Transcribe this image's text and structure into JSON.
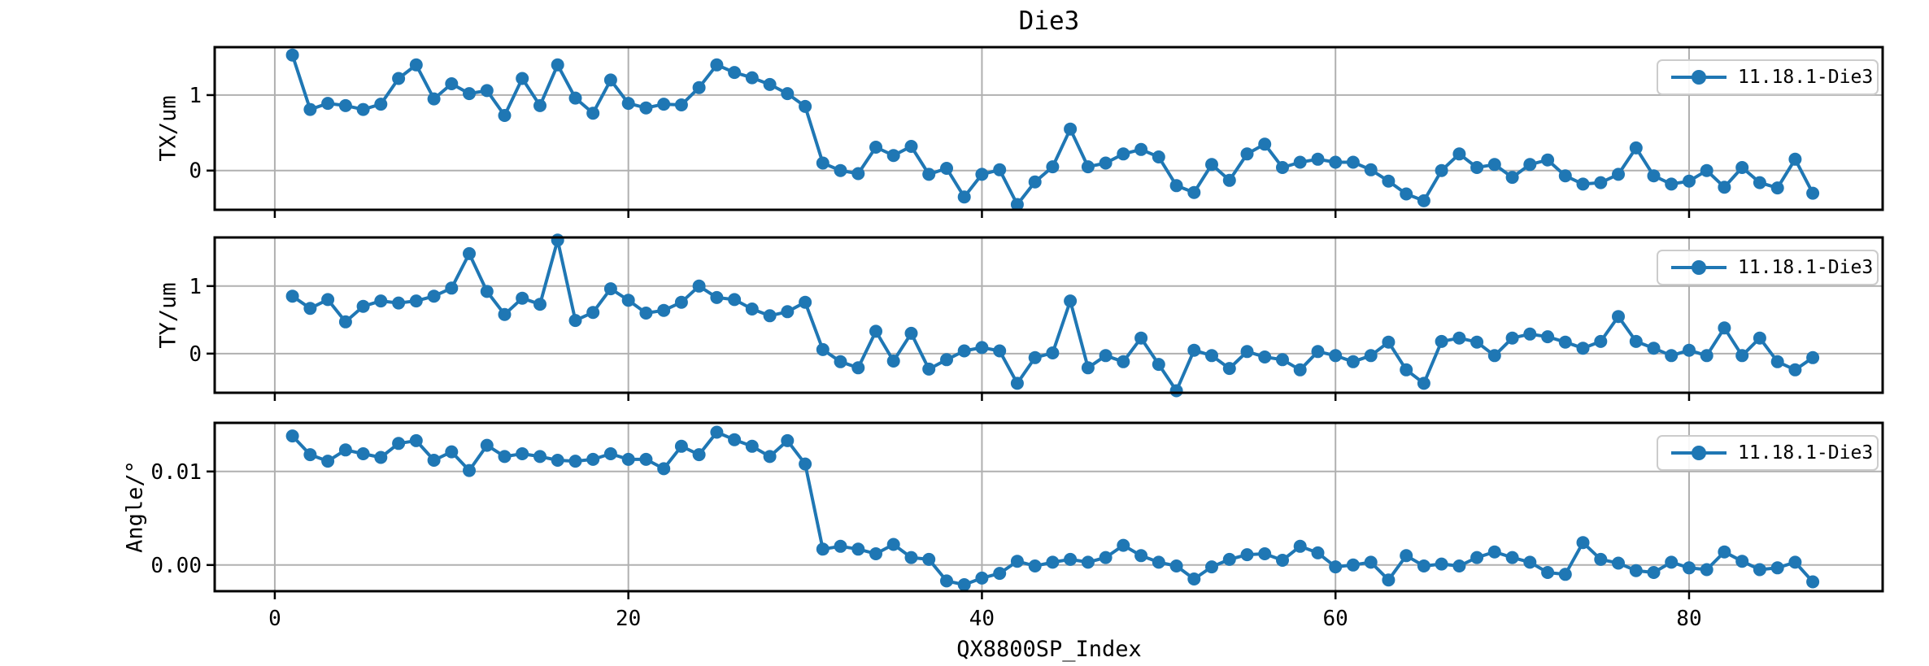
{
  "colors": {
    "series": "#1f77b4",
    "grid": "#b0b0b0",
    "spine": "#000000",
    "text": "#000000",
    "legend_border": "#cccccc",
    "legend_bg": "#ffffff"
  },
  "legend": {
    "label": "11.18.1-Die3",
    "position": "upper right"
  },
  "chart_data": {
    "type": "line",
    "title": "Die3",
    "xlabel": "QX8800SP_Index",
    "grid": true,
    "marker": "circle",
    "legend_position": "upper right",
    "xticks": [
      0,
      20,
      40,
      60,
      80
    ],
    "xtick_labels": [
      "0",
      "20",
      "40",
      "60",
      "80"
    ],
    "xlim": [
      -3.4,
      90.95
    ],
    "x": [
      1,
      2,
      3,
      4,
      5,
      6,
      7,
      8,
      9,
      10,
      11,
      12,
      13,
      14,
      15,
      16,
      17,
      18,
      19,
      20,
      21,
      22,
      23,
      24,
      25,
      26,
      27,
      28,
      29,
      30,
      31,
      32,
      33,
      34,
      35,
      36,
      37,
      38,
      39,
      40,
      41,
      42,
      43,
      44,
      45,
      46,
      47,
      48,
      49,
      50,
      51,
      52,
      53,
      54,
      55,
      56,
      57,
      58,
      59,
      60,
      61,
      62,
      63,
      64,
      65,
      66,
      67,
      68,
      69,
      70,
      71,
      72,
      73,
      74,
      75,
      76,
      77,
      78,
      79,
      80,
      81,
      82,
      83,
      84,
      85,
      86,
      87
    ],
    "subplots": [
      {
        "ylabel": "TX/um",
        "series_label": "11.18.1-Die3",
        "ylim": [
          -0.52,
          1.635
        ],
        "yticks": [
          0,
          1
        ],
        "ytick_labels": [
          "0",
          "1"
        ],
        "values": [
          1.53,
          0.81,
          0.89,
          0.86,
          0.81,
          0.88,
          1.22,
          1.4,
          0.95,
          1.15,
          1.02,
          1.06,
          0.73,
          1.22,
          0.86,
          1.4,
          0.96,
          0.76,
          1.2,
          0.89,
          0.83,
          0.88,
          0.87,
          1.1,
          1.4,
          1.3,
          1.23,
          1.14,
          1.02,
          0.85,
          0.1,
          0.0,
          -0.04,
          0.31,
          0.2,
          0.32,
          -0.05,
          0.03,
          -0.35,
          -0.05,
          0.01,
          -0.45,
          -0.15,
          0.05,
          0.55,
          0.05,
          0.1,
          0.22,
          0.28,
          0.18,
          -0.2,
          -0.29,
          0.08,
          -0.13,
          0.22,
          0.35,
          0.04,
          0.11,
          0.15,
          0.11,
          0.11,
          0.01,
          -0.14,
          -0.31,
          -0.4,
          0.0,
          0.22,
          0.04,
          0.08,
          -0.09,
          0.08,
          0.14,
          -0.07,
          -0.18,
          -0.16,
          -0.05,
          0.3,
          -0.07,
          -0.18,
          -0.14,
          0.0,
          -0.22,
          0.04,
          -0.16,
          -0.23,
          0.15,
          -0.3
        ]
      },
      {
        "ylabel": "TY/um",
        "series_label": "11.18.1-Die3",
        "ylim": [
          -0.58,
          1.72
        ],
        "yticks": [
          0,
          1
        ],
        "ytick_labels": [
          "0",
          "1"
        ],
        "values": [
          0.85,
          0.67,
          0.8,
          0.47,
          0.7,
          0.78,
          0.75,
          0.78,
          0.85,
          0.97,
          1.48,
          0.92,
          0.58,
          0.82,
          0.73,
          1.68,
          0.49,
          0.61,
          0.96,
          0.79,
          0.6,
          0.64,
          0.76,
          1.0,
          0.83,
          0.8,
          0.66,
          0.56,
          0.62,
          0.76,
          0.06,
          -0.12,
          -0.21,
          0.33,
          -0.11,
          0.3,
          -0.23,
          -0.09,
          0.04,
          0.09,
          0.04,
          -0.44,
          -0.06,
          0.01,
          0.78,
          -0.21,
          -0.03,
          -0.12,
          0.23,
          -0.16,
          -0.55,
          0.05,
          -0.03,
          -0.22,
          0.03,
          -0.05,
          -0.09,
          -0.24,
          0.03,
          -0.03,
          -0.12,
          -0.03,
          0.17,
          -0.24,
          -0.44,
          0.18,
          0.23,
          0.17,
          -0.03,
          0.23,
          0.29,
          0.25,
          0.17,
          0.08,
          0.18,
          0.55,
          0.18,
          0.08,
          -0.03,
          0.05,
          -0.03,
          0.38,
          -0.03,
          0.23,
          -0.12,
          -0.24,
          -0.06
        ]
      },
      {
        "ylabel": "Angle/°",
        "series_label": "11.18.1-Die3",
        "ylim": [
          -0.0028,
          0.0152
        ],
        "yticks": [
          0,
          0.01
        ],
        "ytick_labels": [
          "0.00",
          "0.01"
        ],
        "values": [
          0.0138,
          0.0118,
          0.0111,
          0.0123,
          0.0119,
          0.0115,
          0.013,
          0.0133,
          0.0112,
          0.0121,
          0.0101,
          0.0128,
          0.0116,
          0.0119,
          0.0116,
          0.0112,
          0.0111,
          0.0113,
          0.0119,
          0.0113,
          0.0113,
          0.0103,
          0.0127,
          0.0118,
          0.0142,
          0.0134,
          0.0127,
          0.0116,
          0.0133,
          0.0108,
          0.0017,
          0.002,
          0.0017,
          0.0012,
          0.0022,
          0.0008,
          0.0006,
          -0.0017,
          -0.0021,
          -0.0014,
          -0.0009,
          0.0004,
          -0.0001,
          0.0003,
          0.0006,
          0.0003,
          0.0008,
          0.0021,
          0.001,
          0.0003,
          -0.0001,
          -0.0015,
          -0.0002,
          0.0006,
          0.0011,
          0.0012,
          0.0005,
          0.002,
          0.0013,
          -0.0002,
          0.0,
          0.0003,
          -0.0016,
          0.001,
          -0.0001,
          0.0001,
          -0.0001,
          0.0008,
          0.0014,
          0.0008,
          0.0003,
          -0.0008,
          -0.001,
          0.0024,
          0.0006,
          0.0002,
          -0.0006,
          -0.0008,
          0.0003,
          -0.0003,
          -0.0005,
          0.0014,
          0.0004,
          -0.0005,
          -0.0003,
          0.0003,
          -0.0018
        ]
      }
    ]
  }
}
